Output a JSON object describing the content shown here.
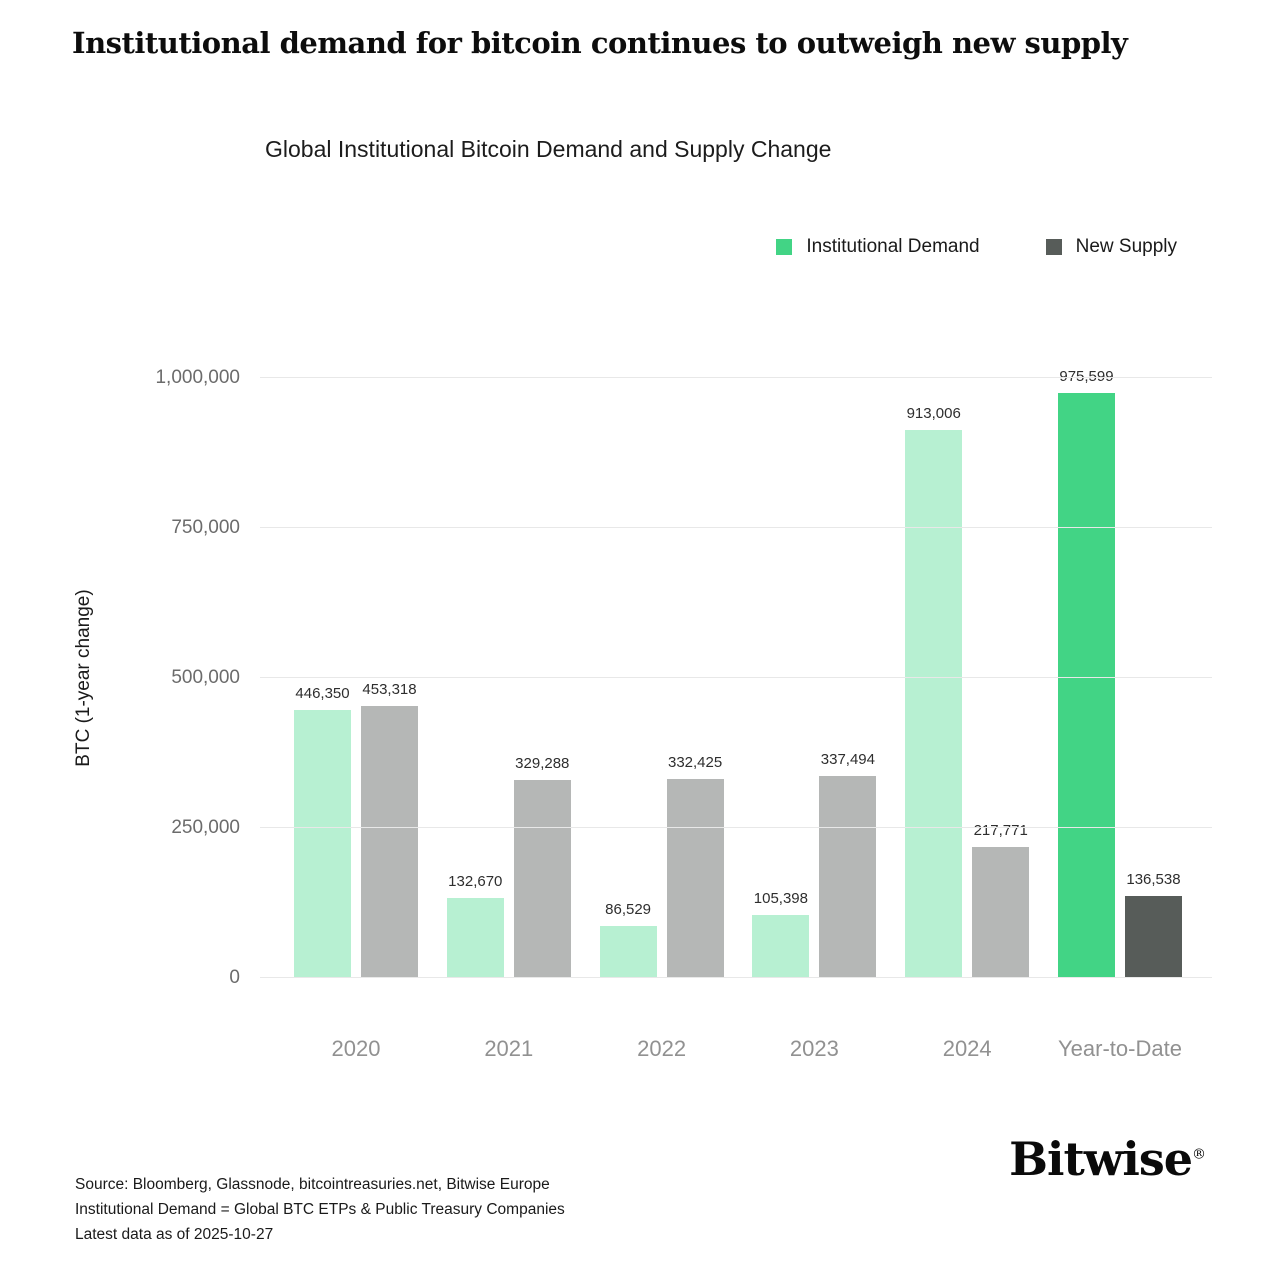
{
  "page": {
    "title": "Institutional demand for bitcoin continues to outweigh new supply",
    "logo": "Bitwise",
    "logo_mark": "®"
  },
  "footer": {
    "line1": "Source: Bloomberg, Glassnode, bitcointreasuries.net, Bitwise Europe",
    "line2": "Institutional Demand = Global BTC ETPs & Public Treasury Companies",
    "line3": "Latest data as of 2025-10-27"
  },
  "chart_data": {
    "type": "bar",
    "title": "Global Institutional Bitcoin Demand and Supply Change",
    "ylabel": "BTC (1-year change)",
    "ylim": [
      0,
      1000000
    ],
    "yticks": [
      0,
      250000,
      500000,
      750000,
      1000000
    ],
    "categories": [
      "2020",
      "2021",
      "2022",
      "2023",
      "2024",
      "Year-to-Date"
    ],
    "series": [
      {
        "name": "Institutional Demand",
        "values": [
          446350,
          132670,
          86529,
          105398,
          913006,
          975599
        ]
      },
      {
        "name": "New Supply",
        "values": [
          453318,
          329288,
          332425,
          337494,
          217771,
          136538
        ]
      }
    ],
    "highlight_category": "Year-to-Date",
    "legend_position": "top-right",
    "grid": true,
    "colors": {
      "demand": "#b7f0d2",
      "demand_highlight": "#42d485",
      "supply": "#b5b7b6",
      "supply_highlight": "#575c59"
    }
  }
}
